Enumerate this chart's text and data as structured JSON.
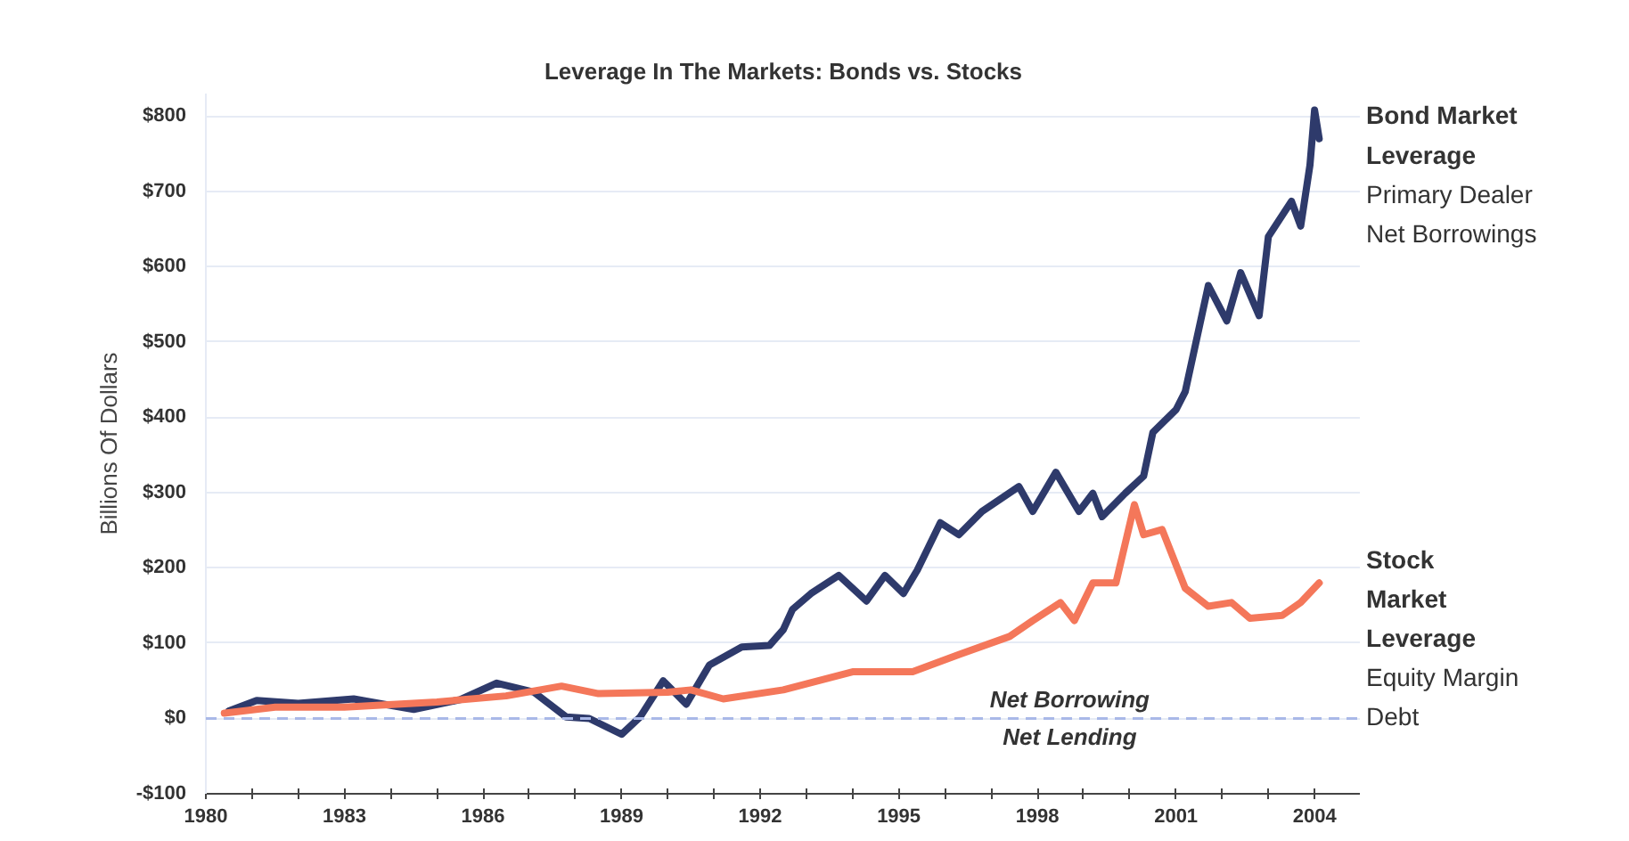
{
  "chart_data": {
    "type": "line",
    "title": "Leverage In The Markets: Bonds vs. Stocks",
    "ylabel": "Billions Of Dollars",
    "xlim": [
      1980,
      2005
    ],
    "ylim": [
      -100,
      830
    ],
    "xticks": [
      1980,
      {
        "value": 1981,
        "label": null
      },
      {
        "value": 1982,
        "label": null
      },
      1983,
      {
        "value": 1984,
        "label": null
      },
      {
        "value": 1985,
        "label": null
      },
      1986,
      {
        "value": 1987,
        "label": null
      },
      {
        "value": 1988,
        "label": null
      },
      1989,
      {
        "value": 1990,
        "label": null
      },
      {
        "value": 1991,
        "label": null
      },
      1992,
      {
        "value": 1993,
        "label": null
      },
      {
        "value": 1994,
        "label": null
      },
      1995,
      {
        "value": 1996,
        "label": null
      },
      {
        "value": 1997,
        "label": null
      },
      1998,
      {
        "value": 1999,
        "label": null
      },
      {
        "value": 2000,
        "label": null
      },
      2001,
      {
        "value": 2002,
        "label": null
      },
      {
        "value": 2003,
        "label": null
      },
      2004,
      {
        "value": 2005,
        "label": null
      }
    ],
    "yticks": [
      {
        "value": -100,
        "label": "-$100"
      },
      {
        "value": 0,
        "label": "$0"
      },
      {
        "value": 100,
        "label": "$100"
      },
      {
        "value": 200,
        "label": "$200"
      },
      {
        "value": 300,
        "label": "$300"
      },
      {
        "value": 400,
        "label": "$400"
      },
      {
        "value": 500,
        "label": "$500"
      },
      {
        "value": 600,
        "label": "$600"
      },
      {
        "value": 700,
        "label": "$700"
      },
      {
        "value": 800,
        "label": "$800"
      }
    ],
    "grid": "y",
    "line_style": "solid",
    "marker": "none",
    "series": [
      {
        "name": "Bond Market Leverage",
        "color": "#2e3a6b",
        "x": [
          1980.5,
          1981.1,
          1982,
          1983.2,
          1984.5,
          1985.5,
          1986.3,
          1987.1,
          1987.8,
          1988.3,
          1989.0,
          1989.4,
          1989.9,
          1990.4,
          1990.9,
          1991.6,
          1992.2,
          1992.5,
          1992.7,
          1993.1,
          1993.7,
          1994.3,
          1994.7,
          1995.1,
          1995.4,
          1995.9,
          1996.3,
          1996.8,
          1997.6,
          1997.9,
          1998.4,
          1998.9,
          1999.2,
          1999.4,
          1999.9,
          2000.3,
          2000.5,
          2001.0,
          2001.2,
          2001.7,
          2002.1,
          2002.4,
          2002.8,
          2003.0,
          2003.5,
          2003.7,
          2003.9,
          2004.0,
          2004.1
        ],
        "values": [
          10,
          24,
          20,
          26,
          12,
          25,
          47,
          35,
          2,
          0,
          -21,
          2,
          50,
          19,
          71,
          95,
          97,
          118,
          145,
          166,
          190,
          156,
          190,
          166,
          197,
          260,
          244,
          275,
          308,
          275,
          327,
          275,
          299,
          268,
          299,
          322,
          380,
          410,
          434,
          575,
          528,
          592,
          535,
          640,
          687,
          654,
          735,
          808,
          770
        ]
      },
      {
        "name": "Stock Market Leverage",
        "color": "#f4775a",
        "x": [
          1980.4,
          1981.5,
          1983,
          1985,
          1986.5,
          1987.7,
          1988.5,
          1990,
          1990.5,
          1991.2,
          1992.5,
          1994.0,
          1995.3,
          1996.3,
          1997.4,
          1997.9,
          1998.5,
          1998.8,
          1999.2,
          1999.7,
          2000.1,
          2000.3,
          2000.7,
          2001.2,
          2001.7,
          2002.2,
          2002.6,
          2003.3,
          2003.7,
          2004.1
        ],
        "values": [
          7,
          15,
          15,
          22,
          30,
          43,
          33,
          35,
          38,
          26,
          38,
          62,
          62,
          85,
          109,
          130,
          154,
          130,
          180,
          180,
          284,
          244,
          251,
          173,
          149,
          154,
          133,
          137,
          154,
          180
        ]
      }
    ],
    "ref_lines": [
      {
        "axis": "y",
        "value": 0,
        "label": "Net Borrowing",
        "color": "#a9b8e8",
        "line_style": "dashed"
      }
    ],
    "annotations": [
      "Primary Dealer Net Borrowings",
      "Equity Margin Debt",
      {
        "text": "Net Lending",
        "x": 1998.7,
        "y": 0
      }
    ]
  }
}
